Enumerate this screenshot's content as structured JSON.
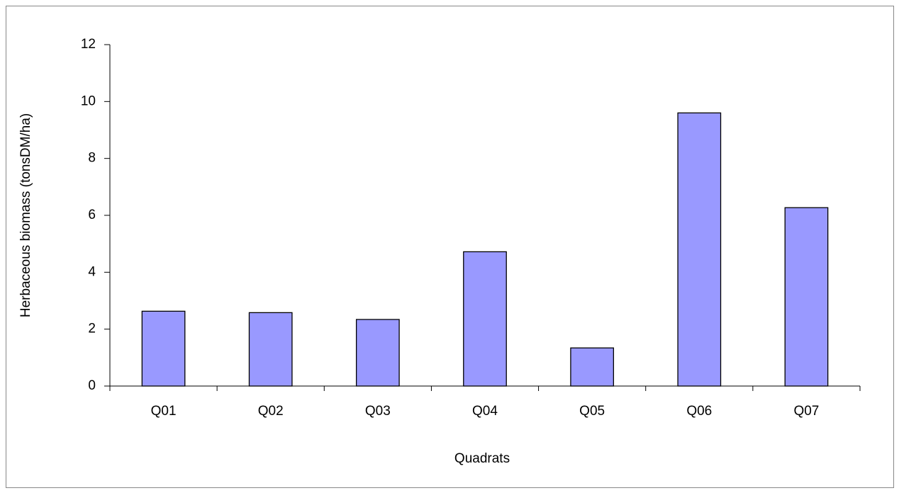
{
  "chart_data": {
    "type": "bar",
    "x_label": "Quadrats",
    "y_label": "Herbaceous biomass (tonsDM/ha)",
    "categories": [
      "Q01",
      "Q02",
      "Q03",
      "Q04",
      "Q05",
      "Q06",
      "Q07"
    ],
    "values": [
      2.63,
      2.58,
      2.34,
      4.72,
      1.34,
      9.6,
      6.27
    ],
    "color": "#9999ff",
    "ylim": [
      0,
      12
    ],
    "yticks": [
      0,
      2,
      4,
      6,
      8,
      10,
      12
    ],
    "grid": false
  }
}
